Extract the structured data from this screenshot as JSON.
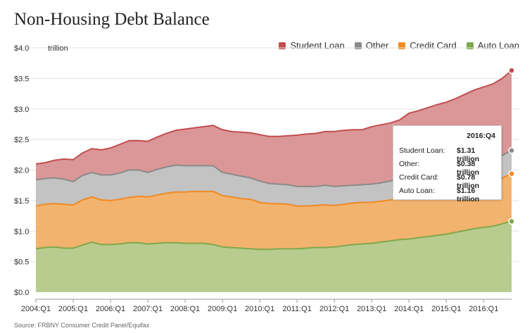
{
  "title": "Non-Housing Debt Balance",
  "unit_label": "trillion",
  "source": "Source: FRBNY Consumer Credit Panel/Equifax",
  "legend": [
    {
      "label": "Student Loan",
      "color": "#c24d4f"
    },
    {
      "label": "Other",
      "color": "#8a8a8a"
    },
    {
      "label": "Credit Card",
      "color": "#f08a24"
    },
    {
      "label": "Auto Loan",
      "color": "#7fa84a"
    }
  ],
  "tooltip": {
    "title": "2016:Q4",
    "rows": [
      {
        "label": "Student Loan:",
        "value": "$1.31 trillion"
      },
      {
        "label": "Other:",
        "value": "$0.38 trillion"
      },
      {
        "label": "Credit Card:",
        "value": "$0.78 trillion"
      },
      {
        "label": "Auto Loan:",
        "value": "$1.16 trillion"
      }
    ]
  },
  "chart_data": {
    "type": "area",
    "stacked": true,
    "title": "Non-Housing Debt Balance",
    "ylabel": "trillion",
    "ylim": [
      0,
      4.0
    ],
    "y_ticks": [
      "$0.0",
      "$0.5",
      "$1.0",
      "$1.5",
      "$2.0",
      "$2.5",
      "$3.0",
      "$3.5",
      "$4.0"
    ],
    "x_tick_labels": [
      "2004:Q1",
      "2005:Q1",
      "2006:Q1",
      "2007:Q1",
      "2008:Q1",
      "2009:Q1",
      "2010:Q1",
      "2011:Q1",
      "2012:Q1",
      "2013:Q1",
      "2014:Q1",
      "2015:Q1",
      "2016:Q1"
    ],
    "legend_position": "top-right",
    "grid": true,
    "x": [
      "2004:Q1",
      "2004:Q2",
      "2004:Q3",
      "2004:Q4",
      "2005:Q1",
      "2005:Q2",
      "2005:Q3",
      "2005:Q4",
      "2006:Q1",
      "2006:Q2",
      "2006:Q3",
      "2006:Q4",
      "2007:Q1",
      "2007:Q2",
      "2007:Q3",
      "2007:Q4",
      "2008:Q1",
      "2008:Q2",
      "2008:Q3",
      "2008:Q4",
      "2009:Q1",
      "2009:Q2",
      "2009:Q3",
      "2009:Q4",
      "2010:Q1",
      "2010:Q2",
      "2010:Q3",
      "2010:Q4",
      "2011:Q1",
      "2011:Q2",
      "2011:Q3",
      "2011:Q4",
      "2012:Q1",
      "2012:Q2",
      "2012:Q3",
      "2012:Q4",
      "2013:Q1",
      "2013:Q2",
      "2013:Q3",
      "2013:Q4",
      "2014:Q1",
      "2014:Q2",
      "2014:Q3",
      "2014:Q4",
      "2015:Q1",
      "2015:Q2",
      "2015:Q3",
      "2015:Q4",
      "2016:Q1",
      "2016:Q2",
      "2016:Q3",
      "2016:Q4"
    ],
    "series": [
      {
        "name": "Auto Loan",
        "color": "#7fa84a",
        "fill": "#b8cc8f",
        "values": [
          0.71,
          0.73,
          0.74,
          0.72,
          0.72,
          0.77,
          0.82,
          0.78,
          0.78,
          0.79,
          0.81,
          0.81,
          0.79,
          0.8,
          0.81,
          0.81,
          0.8,
          0.8,
          0.8,
          0.78,
          0.74,
          0.73,
          0.72,
          0.71,
          0.7,
          0.7,
          0.71,
          0.71,
          0.71,
          0.72,
          0.73,
          0.73,
          0.74,
          0.76,
          0.78,
          0.79,
          0.8,
          0.82,
          0.84,
          0.86,
          0.87,
          0.89,
          0.91,
          0.93,
          0.95,
          0.98,
          1.01,
          1.04,
          1.06,
          1.08,
          1.12,
          1.16
        ]
      },
      {
        "name": "Credit Card",
        "color": "#f08a24",
        "fill": "#f2b36e",
        "values": [
          0.7,
          0.71,
          0.71,
          0.72,
          0.71,
          0.74,
          0.74,
          0.73,
          0.72,
          0.73,
          0.74,
          0.76,
          0.77,
          0.79,
          0.81,
          0.83,
          0.84,
          0.85,
          0.85,
          0.87,
          0.84,
          0.83,
          0.81,
          0.81,
          0.77,
          0.75,
          0.74,
          0.73,
          0.7,
          0.69,
          0.69,
          0.7,
          0.68,
          0.68,
          0.68,
          0.68,
          0.67,
          0.67,
          0.67,
          0.68,
          0.68,
          0.68,
          0.68,
          0.7,
          0.69,
          0.71,
          0.72,
          0.73,
          0.71,
          0.73,
          0.75,
          0.78
        ]
      },
      {
        "name": "Other",
        "color": "#8a8a8a",
        "fill": "#c3c3c3",
        "values": [
          0.43,
          0.42,
          0.42,
          0.41,
          0.38,
          0.4,
          0.4,
          0.41,
          0.42,
          0.43,
          0.45,
          0.43,
          0.4,
          0.42,
          0.43,
          0.44,
          0.43,
          0.42,
          0.42,
          0.42,
          0.38,
          0.37,
          0.37,
          0.35,
          0.35,
          0.33,
          0.32,
          0.32,
          0.32,
          0.32,
          0.31,
          0.32,
          0.31,
          0.3,
          0.29,
          0.29,
          0.3,
          0.3,
          0.31,
          0.32,
          0.33,
          0.33,
          0.34,
          0.34,
          0.34,
          0.35,
          0.35,
          0.35,
          0.36,
          0.36,
          0.37,
          0.38
        ]
      },
      {
        "name": "Student Loan",
        "color": "#c24d4f",
        "fill": "#db9797",
        "values": [
          0.26,
          0.26,
          0.29,
          0.33,
          0.36,
          0.37,
          0.39,
          0.41,
          0.44,
          0.47,
          0.48,
          0.48,
          0.51,
          0.53,
          0.55,
          0.57,
          0.6,
          0.62,
          0.64,
          0.66,
          0.7,
          0.7,
          0.72,
          0.74,
          0.76,
          0.77,
          0.78,
          0.8,
          0.84,
          0.86,
          0.87,
          0.88,
          0.9,
          0.91,
          0.91,
          0.9,
          0.94,
          0.95,
          0.95,
          0.96,
          1.05,
          1.07,
          1.09,
          1.1,
          1.13,
          1.13,
          1.16,
          1.19,
          1.23,
          1.24,
          1.26,
          1.31
        ]
      }
    ]
  }
}
